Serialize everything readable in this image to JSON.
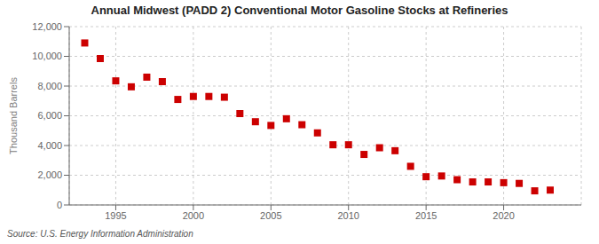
{
  "chart_data": {
    "type": "scatter",
    "title": "Annual Midwest (PADD 2) Conventional Motor Gasoline Stocks at Refineries",
    "ylabel": "Thousand Barrels",
    "annotations": [
      "Source: U.S. Energy Information Administration"
    ],
    "x": [
      1993,
      1994,
      1995,
      1996,
      1997,
      1998,
      1999,
      2000,
      2001,
      2002,
      2003,
      2004,
      2005,
      2006,
      2007,
      2008,
      2009,
      2010,
      2011,
      2012,
      2013,
      2014,
      2015,
      2016,
      2017,
      2018,
      2019,
      2020,
      2021,
      2022,
      2023
    ],
    "values": [
      10900,
      9850,
      8350,
      7950,
      8600,
      8300,
      7100,
      7300,
      7300,
      7250,
      6150,
      5600,
      5350,
      5800,
      5400,
      4850,
      4050,
      4050,
      3400,
      3850,
      3650,
      2600,
      1900,
      1950,
      1700,
      1550,
      1550,
      1500,
      1450,
      950,
      1000
    ],
    "color": "#cc0000",
    "marker": "square",
    "xlim": [
      1992,
      2025
    ],
    "ylim": [
      0,
      12000
    ],
    "xticks": [
      1995,
      2000,
      2005,
      2010,
      2015,
      2020
    ],
    "yticks": [
      0,
      {
        "value": 2000,
        "label": "2,000"
      },
      {
        "value": 4000,
        "label": "4,000"
      },
      {
        "value": 6000,
        "label": "6,000"
      },
      {
        "value": 8000,
        "label": "8,000"
      },
      {
        "value": 10000,
        "label": "10,000"
      },
      {
        "value": 12000,
        "label": "12,000"
      }
    ],
    "grid": true
  }
}
